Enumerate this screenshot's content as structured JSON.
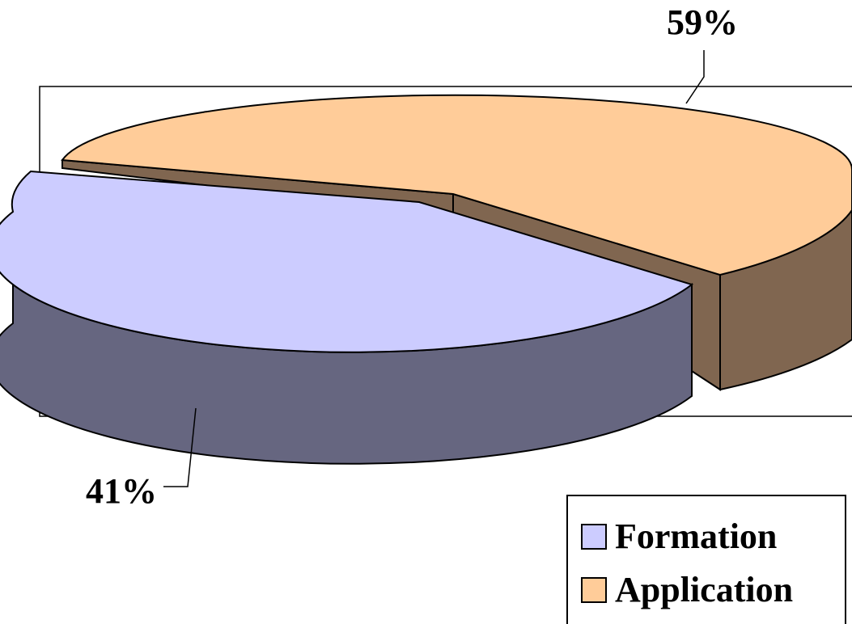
{
  "chart_data": {
    "type": "pie",
    "style": "3d-exploded",
    "title": "",
    "categories": [
      "Formation",
      "Application"
    ],
    "values": [
      41,
      59
    ],
    "data_labels": [
      "41%",
      "59%"
    ],
    "colors": {
      "Formation": {
        "top": "#CCCCFF",
        "side": "#666680"
      },
      "Application": {
        "top": "#FFCC99",
        "side": "#806650"
      }
    },
    "legend": {
      "position": "bottom-right",
      "entries": [
        "Formation",
        "Application"
      ]
    },
    "plot_area_border": true
  }
}
